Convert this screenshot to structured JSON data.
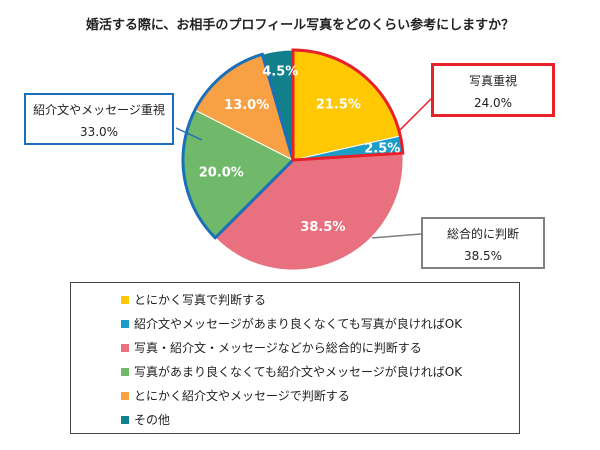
{
  "chart_data": {
    "type": "pie",
    "title": "婚活する際に、お相手のプロフィール写真をどのくらい参考にしますか？",
    "legend_position": "bottom",
    "series": [
      {
        "name": "とにかく写真で判断する",
        "value": 21.5,
        "label": "21.5%",
        "color": "#FFC800"
      },
      {
        "name": "紹介文やメッセージがあまり良くなくても写真が良ければOK",
        "value": 2.5,
        "label": "2.5%",
        "color": "#1B9DC8"
      },
      {
        "name": "写真・紹介文・メッセージなどから総合的に判断する",
        "value": 38.5,
        "label": "38.5%",
        "color": "#E8707F"
      },
      {
        "name": "写真があまり良くなくても紹介文やメッセージが良ければOK",
        "value": 20.0,
        "label": "20.0%",
        "color": "#70B86A"
      },
      {
        "name": "とにかく紹介文やメッセージで判断する",
        "value": 13.0,
        "label": "13.0%",
        "color": "#F7A044"
      },
      {
        "name": "その他",
        "value": 4.5,
        "label": "4.5%",
        "color": "#12808C"
      }
    ],
    "callouts": [
      {
        "label": "写真重視",
        "value": "24.0%",
        "border_color": "#E8202A"
      },
      {
        "label": "紹介文やメッセージ重視",
        "value": "33.0%",
        "border_color": "#1B6FB8"
      },
      {
        "label": "総合的に判断",
        "value": "38.5%",
        "border_color": "#808080"
      }
    ]
  }
}
